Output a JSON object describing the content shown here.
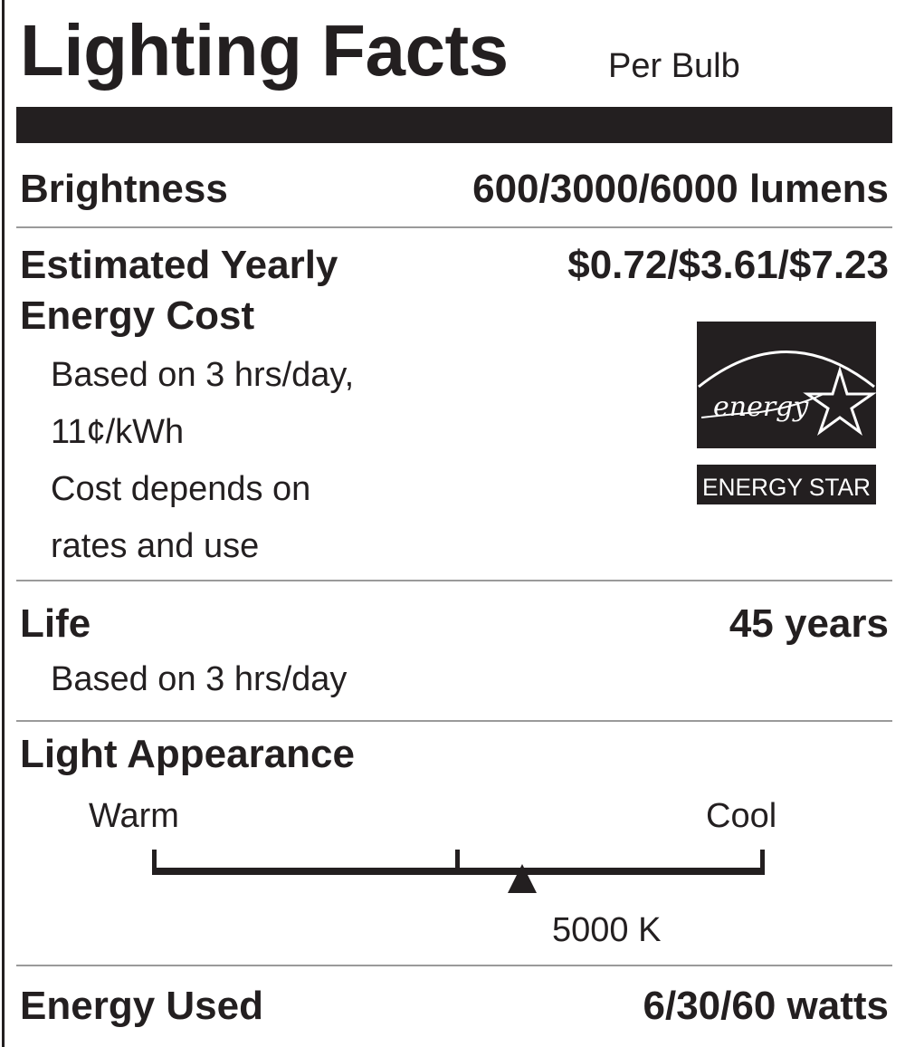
{
  "header": {
    "title": "Lighting Facts",
    "subtitle": "Per Bulb"
  },
  "brightness": {
    "label": "Brightness",
    "value": "600/3000/6000 lumens"
  },
  "cost": {
    "label_line1": "Estimated Yearly",
    "label_line2": "Energy Cost",
    "value": "$0.72/$3.61/$7.23",
    "notes": [
      "Based on 3 hrs/day,",
      "11¢/kWh",
      "Cost depends on",
      "rates and use"
    ]
  },
  "energy_star": {
    "logo_script": "energy",
    "label": "ENERGY STAR",
    "icon": "energy-star-logo"
  },
  "life": {
    "label": "Life",
    "value": "45 years",
    "note": "Based on 3 hrs/day"
  },
  "appearance": {
    "label": "Light Appearance",
    "warm_label": "Warm",
    "cool_label": "Cool",
    "value_label": "5000 K",
    "scale_min_k": 2700,
    "scale_max_k": 6500,
    "marker_k": 5000
  },
  "energy_used": {
    "label": "Energy Used",
    "value": "6/30/60 watts"
  },
  "colors": {
    "ink": "#231f20",
    "rule": "#9a9a9a"
  }
}
